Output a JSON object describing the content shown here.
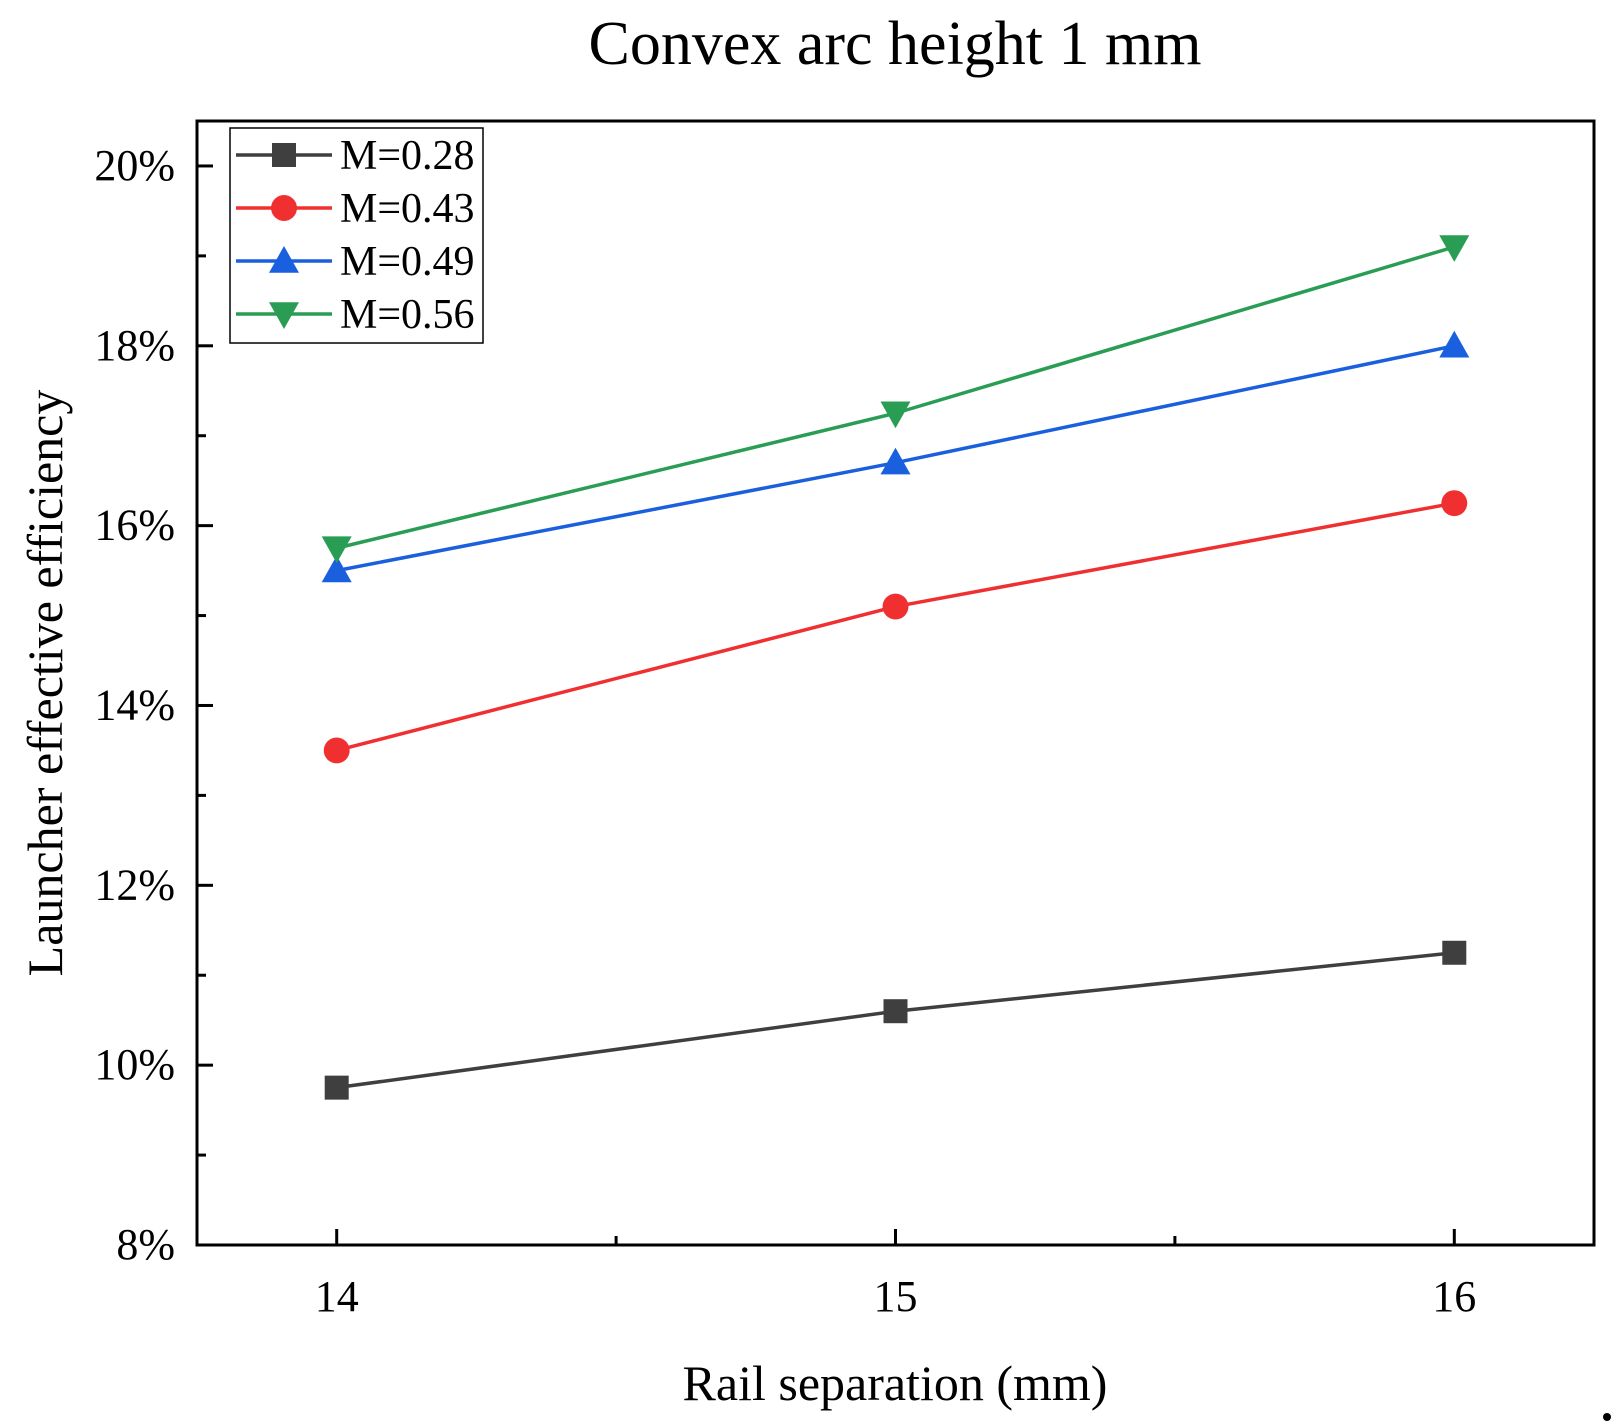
{
  "chart_data": {
    "type": "line",
    "title": "Convex arc height 1 mm",
    "xlabel": "Rail separation (mm)",
    "ylabel": "Launcher effective efficiency",
    "x": [
      14,
      15,
      16
    ],
    "x_tick_labels": [
      "14",
      "15",
      "16"
    ],
    "xlim": [
      13.75,
      16.25
    ],
    "ylim": [
      8,
      20.5
    ],
    "y_ticks": [
      8,
      10,
      12,
      14,
      16,
      18,
      20
    ],
    "y_tick_labels": [
      "8%",
      "10%",
      "12%",
      "14%",
      "16%",
      "18%",
      "20%"
    ],
    "legend_position": "top-left",
    "grid": false,
    "series": [
      {
        "name": "M=0.28",
        "color": "#3f3f3f",
        "marker": "square",
        "values": [
          9.75,
          10.6,
          11.25
        ]
      },
      {
        "name": "M=0.43",
        "color": "#f03030",
        "marker": "circle",
        "values": [
          13.5,
          15.1,
          16.25
        ]
      },
      {
        "name": "M=0.49",
        "color": "#1a5fdd",
        "marker": "triangle-up",
        "values": [
          15.5,
          16.7,
          18.0
        ]
      },
      {
        "name": "M=0.56",
        "color": "#2a9d55",
        "marker": "triangle-down",
        "values": [
          15.75,
          17.25,
          19.1
        ]
      }
    ]
  }
}
